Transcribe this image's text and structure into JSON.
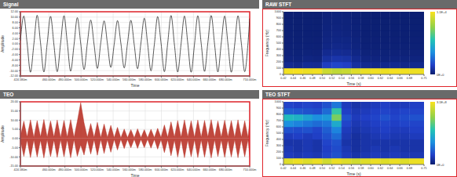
{
  "chart_data": [
    {
      "type": "line",
      "title": "Signal",
      "xlabel": "Time",
      "ylabel": "Amplitude",
      "x": [
        0.42458,
        0.4288,
        0.4329,
        0.4371,
        0.4413,
        0.4454,
        0.4496,
        0.4538,
        0.4579,
        0.4621,
        0.4663,
        0.4704,
        0.4746,
        0.4788,
        0.4829,
        0.4871,
        0.4913,
        0.4954,
        0.4996,
        0.5038,
        0.5079,
        0.5121,
        0.5163,
        0.5204,
        0.5246,
        0.5288,
        0.5329,
        0.5371,
        0.5413,
        0.5454,
        0.5496,
        0.5538,
        0.5579,
        0.5621,
        0.5663,
        0.5704,
        0.5746,
        0.5788,
        0.5829,
        0.5871,
        0.5913,
        0.5954,
        0.5996,
        0.6038,
        0.6079,
        0.6121,
        0.6163,
        0.6204,
        0.6246,
        0.6288,
        0.6329,
        0.6371,
        0.6413,
        0.6454,
        0.6496,
        0.6538,
        0.6579,
        0.6621,
        0.6663,
        0.6704,
        0.6746,
        0.6788,
        0.6829,
        0.6871,
        0.6913,
        0.6954,
        0.6996,
        0.7038,
        0.7079,
        0.71
      ],
      "series": [
        {
          "color": "#111111",
          "values": [
            1.2,
            10.4,
            0.3,
            -10.6,
            -0.2,
            10.7,
            0.4,
            -10.5,
            0.1,
            10.3,
            -0.3,
            -10.4,
            0.2,
            10.5,
            0.5,
            -10.2,
            -0.4,
            9.8,
            0.3,
            -9.6,
            0.2,
            8.9,
            -0.3,
            -9.2,
            0.4,
            8.6,
            0.1,
            -8.8,
            -0.2,
            8.7,
            0.3,
            -9.0,
            0.2,
            8.8,
            -0.4,
            -9.3,
            0.3,
            9.6,
            0.1,
            -10.1,
            -0.2,
            10.2,
            0.4,
            -10.4,
            0.2,
            10.6,
            -0.3,
            -10.5,
            0.1,
            10.4,
            0.3,
            -10.6,
            -0.1,
            10.5,
            0.2,
            -10.3,
            0.4,
            10.6,
            -0.2,
            -10.5,
            0.3,
            10.4,
            0.1,
            -10.6,
            -0.3,
            10.5,
            0.2,
            -10.4,
            0.3,
            9.5
          ]
        }
      ],
      "xlim": [
        0.42458,
        0.71
      ],
      "xticks": [
        {
          "value": 0.42458,
          "label": "424.580m"
        },
        {
          "value": 0.46,
          "label": "460.000m"
        },
        {
          "value": 0.48,
          "label": "480.000m"
        },
        {
          "value": 0.5,
          "label": "500.000m"
        },
        {
          "value": 0.52,
          "label": "520.000m"
        },
        {
          "value": 0.54,
          "label": "540.000m"
        },
        {
          "value": 0.56,
          "label": "560.000m"
        },
        {
          "value": 0.58,
          "label": "580.000m"
        },
        {
          "value": 0.6,
          "label": "600.000m"
        },
        {
          "value": 0.62,
          "label": "620.000m"
        },
        {
          "value": 0.64,
          "label": "640.000m"
        },
        {
          "value": 0.66,
          "label": "660.000m"
        },
        {
          "value": 0.68,
          "label": "680.000m"
        },
        {
          "value": 0.71,
          "label": "710.000m"
        }
      ],
      "ylim": [
        -12,
        12
      ],
      "yticks": [
        {
          "value": 12,
          "label": "12.00"
        },
        {
          "value": 10,
          "label": "10.00"
        },
        {
          "value": 8,
          "label": "8.00"
        },
        {
          "value": 6,
          "label": "6.00"
        },
        {
          "value": 4,
          "label": "4.00"
        },
        {
          "value": 2,
          "label": "2.00"
        },
        {
          "value": 0,
          "label": "0.00"
        },
        {
          "value": -2,
          "label": "-2.00"
        },
        {
          "value": -4,
          "label": "-4.00"
        },
        {
          "value": -6,
          "label": "-6.00"
        },
        {
          "value": -8,
          "label": "-8.00"
        },
        {
          "value": -10,
          "label": "-10.00"
        },
        {
          "value": -12,
          "label": "-12.00"
        }
      ],
      "grid": true
    },
    {
      "type": "area",
      "title": "TEO",
      "xlabel": "Time",
      "ylabel": "Amplitude",
      "x": [
        0.42458,
        0.4288,
        0.4329,
        0.4371,
        0.4413,
        0.4454,
        0.4496,
        0.4538,
        0.4579,
        0.4621,
        0.4663,
        0.4704,
        0.4746,
        0.4788,
        0.4829,
        0.4871,
        0.4913,
        0.4954,
        0.4996,
        0.5038,
        0.5079,
        0.5121,
        0.5163,
        0.5204,
        0.5246,
        0.5288,
        0.5329,
        0.5371,
        0.5413,
        0.5454,
        0.5496,
        0.5538,
        0.5579,
        0.5621,
        0.5663,
        0.5704,
        0.5746,
        0.5788,
        0.5829,
        0.5871,
        0.5913,
        0.5954,
        0.5996,
        0.6038,
        0.6079,
        0.6121,
        0.6163,
        0.6204,
        0.6246,
        0.6288,
        0.6329,
        0.6371,
        0.6413,
        0.6454,
        0.6496,
        0.6538,
        0.6579,
        0.6621,
        0.6663,
        0.6704,
        0.6746,
        0.6788,
        0.6829,
        0.6871,
        0.6913,
        0.6954,
        0.6996,
        0.7038,
        0.7079,
        0.71
      ],
      "series": [
        {
          "color": "#b5281c",
          "values": [
            1,
            9.5,
            0.8,
            10.2,
            0.6,
            9.8,
            0.9,
            10.4,
            0.7,
            9.6,
            0.8,
            10.1,
            0.5,
            9.9,
            0.7,
            10.3,
            0.6,
            9.4,
            19.5,
            8.6,
            0.7,
            8.2,
            0.6,
            8.8,
            0.5,
            7.9,
            0.6,
            7.2,
            0.5,
            6.1,
            0.4,
            5.2,
            0.5,
            4.9,
            0.4,
            5.3,
            0.5,
            4.8,
            0.4,
            5.1,
            0.5,
            5.6,
            0.6,
            7.4,
            0.7,
            9.1,
            0.8,
            9.8,
            0.7,
            10.2,
            0.8,
            9.7,
            0.6,
            10.1,
            0.7,
            9.9,
            0.8,
            10.3,
            0.6,
            9.6,
            0.7,
            10.0,
            0.8,
            9.8,
            0.6,
            10.2,
            0.7,
            9.7,
            0.6,
            9.5
          ]
        },
        {
          "color": "#b5281c",
          "values": [
            -1,
            -9.8,
            -0.8,
            -10.4,
            -0.7,
            -10.1,
            -0.9,
            -10.6,
            -0.6,
            -9.9,
            -0.8,
            -10.3,
            -0.6,
            -10.0,
            -0.7,
            -10.5,
            -0.6,
            -9.7,
            -3.5,
            -9.0,
            -0.7,
            -8.5,
            -0.6,
            -9.1,
            -0.5,
            -8.2,
            -0.6,
            -7.5,
            -0.5,
            -6.3,
            -0.4,
            -5.5,
            -0.5,
            -5.1,
            -0.4,
            -5.4,
            -0.5,
            -5.0,
            -0.4,
            -5.3,
            -0.5,
            -5.8,
            -0.6,
            -7.7,
            -0.7,
            -9.4,
            -0.8,
            -10.1,
            -0.7,
            -10.5,
            -0.8,
            -10.0,
            -0.6,
            -10.4,
            -0.7,
            -10.2,
            -0.8,
            -10.6,
            -0.6,
            -9.9,
            -0.7,
            -10.3,
            -0.8,
            -10.1,
            -0.6,
            -10.5,
            -0.7,
            -10.0,
            -0.6,
            -9.8
          ]
        }
      ],
      "xlim": [
        0.42458,
        0.71
      ],
      "xticks": [
        {
          "value": 0.42458,
          "label": "424.580m"
        },
        {
          "value": 0.46,
          "label": "460.000m"
        },
        {
          "value": 0.48,
          "label": "480.000m"
        },
        {
          "value": 0.5,
          "label": "500.000m"
        },
        {
          "value": 0.52,
          "label": "520.000m"
        },
        {
          "value": 0.54,
          "label": "540.000m"
        },
        {
          "value": 0.56,
          "label": "560.000m"
        },
        {
          "value": 0.58,
          "label": "580.000m"
        },
        {
          "value": 0.6,
          "label": "600.000m"
        },
        {
          "value": 0.62,
          "label": "620.000m"
        },
        {
          "value": 0.64,
          "label": "640.000m"
        },
        {
          "value": 0.66,
          "label": "660.000m"
        },
        {
          "value": 0.68,
          "label": "680.000m"
        },
        {
          "value": 0.71,
          "label": "710.000m"
        }
      ],
      "ylim": [
        -15,
        20
      ],
      "yticks": [
        {
          "value": 20,
          "label": "20.00"
        },
        {
          "value": 15,
          "label": "15.00"
        },
        {
          "value": 10,
          "label": "10.00"
        },
        {
          "value": 5,
          "label": "5.00"
        },
        {
          "value": 0,
          "label": "0.00"
        },
        {
          "value": -5,
          "label": "-5.00"
        },
        {
          "value": -10,
          "label": "-10.00"
        },
        {
          "value": -15,
          "label": "-15.00"
        }
      ],
      "grid": true
    },
    {
      "type": "heatmap",
      "title": "RAW STFT",
      "xlabel": "Time (s)",
      "ylabel": "Frequency (Hz)",
      "x_bins": [
        0.42,
        0.44,
        0.46,
        0.48,
        0.5,
        0.52,
        0.54,
        0.56,
        0.58,
        0.6,
        0.62,
        0.64,
        0.66,
        0.68,
        0.71
      ],
      "y_bins": [
        0,
        100,
        200,
        300,
        400,
        500,
        600,
        700,
        800,
        900,
        1000
      ],
      "cells": [
        [
          10800,
          10900,
          10700,
          10800,
          9800,
          9500,
          9700,
          10300,
          10600,
          10800,
          10700,
          10900,
          10800,
          10700
        ],
        [
          600,
          500,
          700,
          650,
          1500,
          1800,
          1600,
          900,
          600,
          500,
          550,
          600,
          500,
          550
        ],
        [
          300,
          250,
          350,
          300,
          900,
          1100,
          1000,
          600,
          350,
          300,
          250,
          300,
          280,
          300
        ],
        [
          200,
          180,
          220,
          200,
          600,
          700,
          650,
          400,
          220,
          200,
          180,
          200,
          190,
          210
        ],
        [
          150,
          140,
          160,
          150,
          400,
          500,
          450,
          300,
          160,
          150,
          140,
          150,
          140,
          150
        ],
        [
          120,
          110,
          130,
          120,
          350,
          400,
          380,
          250,
          130,
          120,
          110,
          120,
          110,
          120
        ],
        [
          100,
          90,
          110,
          100,
          300,
          350,
          300,
          200,
          110,
          100,
          90,
          100,
          95,
          100
        ],
        [
          90,
          80,
          100,
          90,
          250,
          300,
          260,
          180,
          100,
          90,
          80,
          90,
          85,
          90
        ],
        [
          80,
          75,
          90,
          80,
          220,
          260,
          230,
          160,
          90,
          80,
          75,
          80,
          78,
          80
        ],
        [
          70,
          70,
          80,
          70,
          200,
          230,
          210,
          140,
          80,
          70,
          70,
          70,
          72,
          70
        ]
      ],
      "xlim": [
        0.42,
        0.71
      ],
      "xticks": [
        0.42,
        0.44,
        0.46,
        0.48,
        {
          "value": 0.5,
          "label": "0.50"
        },
        0.52,
        0.54,
        0.56,
        0.58,
        {
          "value": 0.6,
          "label": "0.60"
        },
        0.62,
        0.64,
        0.66,
        0.68,
        0.71
      ],
      "ylim": [
        0,
        1000
      ],
      "yticks": [
        0,
        100,
        200,
        300,
        400,
        500,
        600,
        700,
        800,
        900,
        1000
      ],
      "colorbar_range": [
        0,
        11000
      ],
      "colorbar_ticks": [
        {
          "value": 11000,
          "label": "1.1E+4"
        },
        {
          "value": 0,
          "label": "0E+0"
        }
      ]
    },
    {
      "type": "heatmap",
      "title": "TEO STFT",
      "xlabel": "Time (s)",
      "ylabel": "Frequency (Hz)",
      "x_bins": [
        0.42,
        0.44,
        0.46,
        0.48,
        0.5,
        0.52,
        0.54,
        0.56,
        0.58,
        0.6,
        0.62,
        0.64,
        0.66,
        0.68,
        0.71
      ],
      "y_bins": [
        0,
        100,
        200,
        300,
        400,
        500,
        600,
        700,
        800,
        900,
        1000
      ],
      "cells": [
        [
          290000000.0,
          300000000.0,
          290000000.0,
          300000000.0,
          280000000.0,
          300000000.0,
          290000000.0,
          280000000.0,
          290000000.0,
          300000000.0,
          290000000.0,
          300000000.0,
          290000000.0,
          300000000.0
        ],
        [
          40000000.0,
          35000000.0,
          40000000.0,
          35000000.0,
          50000000.0,
          60000000.0,
          40000000.0,
          30000000.0,
          35000000.0,
          40000000.0,
          35000000.0,
          40000000.0,
          35000000.0,
          35000000.0
        ],
        [
          35000000.0,
          30000000.0,
          35000000.0,
          30000000.0,
          45000000.0,
          55000000.0,
          35000000.0,
          25000000.0,
          30000000.0,
          35000000.0,
          30000000.0,
          35000000.0,
          30000000.0,
          30000000.0
        ],
        [
          30000000.0,
          30000000.0,
          35000000.0,
          30000000.0,
          50000000.0,
          60000000.0,
          30000000.0,
          25000000.0,
          30000000.0,
          30000000.0,
          30000000.0,
          30000000.0,
          30000000.0,
          30000000.0
        ],
        [
          40000000.0,
          45000000.0,
          40000000.0,
          45000000.0,
          60000000.0,
          80000000.0,
          35000000.0,
          25000000.0,
          30000000.0,
          35000000.0,
          40000000.0,
          35000000.0,
          35000000.0,
          40000000.0
        ],
        [
          60000000.0,
          55000000.0,
          60000000.0,
          50000000.0,
          70000000.0,
          100000000.0,
          40000000.0,
          30000000.0,
          35000000.0,
          40000000.0,
          45000000.0,
          40000000.0,
          40000000.0,
          45000000.0
        ],
        [
          110000000.0,
          100000000.0,
          90000000.0,
          80000000.0,
          90000000.0,
          140000000.0,
          50000000.0,
          35000000.0,
          40000000.0,
          45000000.0,
          50000000.0,
          45000000.0,
          50000000.0,
          50000000.0
        ],
        [
          160000000.0,
          150000000.0,
          130000000.0,
          110000000.0,
          120000000.0,
          220000000.0,
          60000000.0,
          40000000.0,
          45000000.0,
          50000000.0,
          60000000.0,
          50000000.0,
          55000000.0,
          60000000.0
        ],
        [
          70000000.0,
          65000000.0,
          60000000.0,
          55000000.0,
          80000000.0,
          180000000.0,
          45000000.0,
          35000000.0,
          40000000.0,
          45000000.0,
          50000000.0,
          45000000.0,
          50000000.0,
          50000000.0
        ],
        [
          50000000.0,
          45000000.0,
          50000000.0,
          45000000.0,
          60000000.0,
          90000000.0,
          40000000.0,
          30000000.0,
          35000000.0,
          40000000.0,
          45000000.0,
          40000000.0,
          40000000.0,
          45000000.0
        ]
      ],
      "xlim": [
        0.42,
        0.71
      ],
      "xticks": [
        0.42,
        0.44,
        0.46,
        0.48,
        {
          "value": 0.5,
          "label": "0.50"
        },
        0.52,
        0.54,
        0.56,
        0.58,
        {
          "value": 0.6,
          "label": "0.60"
        },
        0.62,
        0.64,
        0.66,
        0.68,
        0.71
      ],
      "ylim": [
        0,
        1000
      ],
      "yticks": [
        0,
        100,
        200,
        300,
        400,
        500,
        600,
        700,
        800,
        900,
        1000
      ],
      "colorbar_range": [
        0,
        310000000.0
      ],
      "colorbar_ticks": [
        {
          "value": 310000000.0,
          "label": "3.1E+8"
        },
        {
          "value": 0,
          "label": "0E+0"
        }
      ]
    }
  ]
}
